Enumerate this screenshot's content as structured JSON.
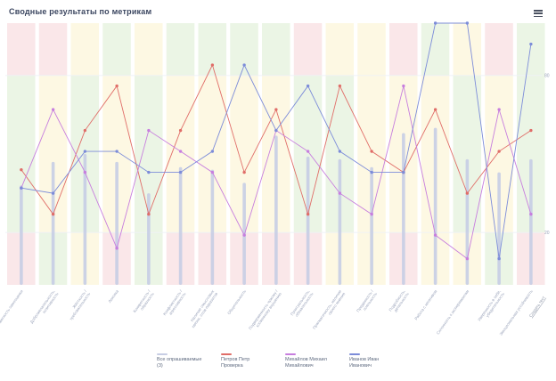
{
  "title": "Сводные результаты по метрикам",
  "toolbar": {
    "menu_icon": "hamburger-menu-icon"
  },
  "watermark": "Создать тест",
  "colors": {
    "zones": {
      "pink": "#fae7e9",
      "yellow": "#fdf8e3",
      "green": "#ebf5e5"
    },
    "grid": "#eef1f6",
    "axis_line": "#e2e6ee",
    "axis_text": "#9aa3ba",
    "title": "#3b4660",
    "legend_text": "#5f6b80",
    "watermark": "#8f98a9",
    "bar": "#c7cde4",
    "red": "#e06d68",
    "violet": "#c77ede",
    "blue": "#7c8cd9"
  },
  "chart_data": {
    "type": "line",
    "title": "Сводные результаты по метрикам",
    "ylim": [
      0,
      100
    ],
    "yticks": [
      20,
      80
    ],
    "ytick_side": "right",
    "grid": "horizontal",
    "legend_position": "bottom",
    "categories": [
      "Адекватность самооценки",
      "Доброжелательность,|позитивность",
      "Жёсткость /|требовательность",
      "Лексика",
      "Конкретность /|образность",
      "Конфликтность /|агрессивность",
      "Наличие смысловых|связок, слов-паразитов",
      "Общительность",
      "Подверженность чужому /|косвенному внушению",
      "Пунктуальность,|обязательность",
      "Прагматичность, наличие|своего мнения",
      "Преданность /|лояльность",
      "Подробность,|детальность",
      "Работа с негативом",
      "Склонность к экспериментам",
      "Уверенность в себе,|убедительность",
      "Эмоциональная устойчивость"
    ],
    "zones": {
      "top": [
        "pink",
        "pink",
        "yellow",
        "green",
        "yellow",
        "green",
        "green",
        "green",
        "green",
        "pink",
        "yellow",
        "yellow",
        "pink",
        "green",
        "yellow",
        "pink",
        "green"
      ],
      "mid": [
        "green",
        "yellow",
        "green",
        "yellow",
        "green",
        "yellow",
        "yellow",
        "yellow",
        "yellow",
        "green",
        "green",
        "yellow",
        "yellow",
        "yellow",
        "green",
        "yellow",
        "green"
      ],
      "bottom": [
        "pink",
        "green",
        "yellow",
        "pink",
        "green",
        "pink",
        "pink",
        "pink",
        "pink",
        "pink",
        "yellow",
        "yellow",
        "pink",
        "yellow",
        "yellow",
        "green",
        "pink"
      ]
    },
    "series": [
      {
        "name": "Все опрашиваемые (3)",
        "type": "column",
        "color": "#c7cde4",
        "values": [
          38,
          47,
          50,
          47,
          35,
          45,
          44,
          39,
          57,
          49,
          48,
          45,
          58,
          60,
          48,
          43,
          48
        ]
      },
      {
        "name": "Петров Петр Проверка",
        "type": "line",
        "color": "#e06d68",
        "values": [
          44,
          27,
          59,
          76,
          27,
          59,
          84,
          43,
          67,
          27,
          76,
          51,
          43,
          67,
          35,
          51,
          59
        ]
      },
      {
        "name": "Михайлов Михаил Михайлович",
        "type": "line",
        "color": "#c77ede",
        "values": [
          37,
          67,
          43,
          14,
          59,
          51,
          43,
          19,
          59,
          51,
          35,
          27,
          76,
          19,
          10,
          67,
          27
        ]
      },
      {
        "name": "Иванов Иван Иванович",
        "type": "line",
        "color": "#7c8cd9",
        "values": [
          37,
          35,
          51,
          51,
          43,
          43,
          51,
          84,
          59,
          76,
          51,
          43,
          43,
          100,
          100,
          10,
          92
        ]
      }
    ]
  }
}
